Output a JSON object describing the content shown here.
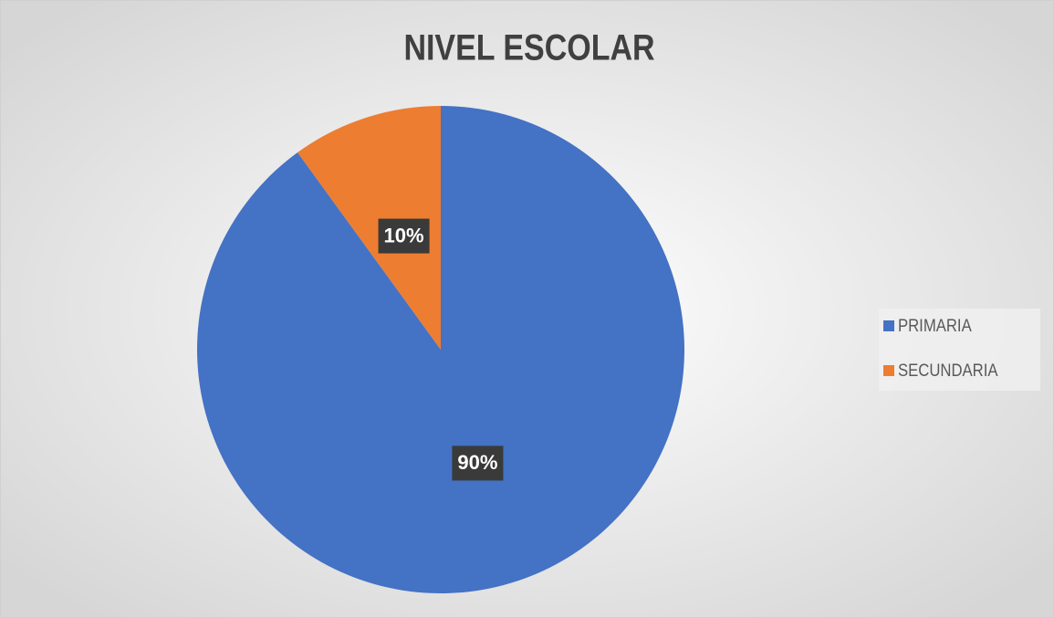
{
  "chart_data": {
    "type": "pie",
    "title": "NIVEL ESCOLAR",
    "categories": [
      "PRIMARIA",
      "SECUNDARIA"
    ],
    "values": [
      90,
      10
    ],
    "value_labels": [
      "90%",
      "10%"
    ],
    "colors": [
      "#4472c4",
      "#ed7d31"
    ],
    "legend": "right"
  }
}
